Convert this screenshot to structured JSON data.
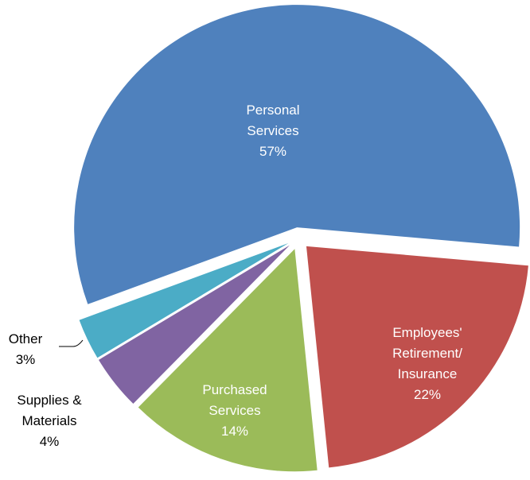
{
  "chart_data": {
    "type": "pie",
    "categories": [
      "Personal Services",
      "Employees' Retirement/ Insurance",
      "Purchased Services",
      "Supplies & Materials",
      "Other"
    ],
    "values": [
      57,
      22,
      14,
      4,
      3
    ],
    "value_labels": [
      "57%",
      "22%",
      "14%",
      "4%",
      "3%"
    ],
    "colors": [
      "#4f81bd",
      "#c0504d",
      "#9bbb59",
      "#8064a2",
      "#4bacc6"
    ]
  }
}
